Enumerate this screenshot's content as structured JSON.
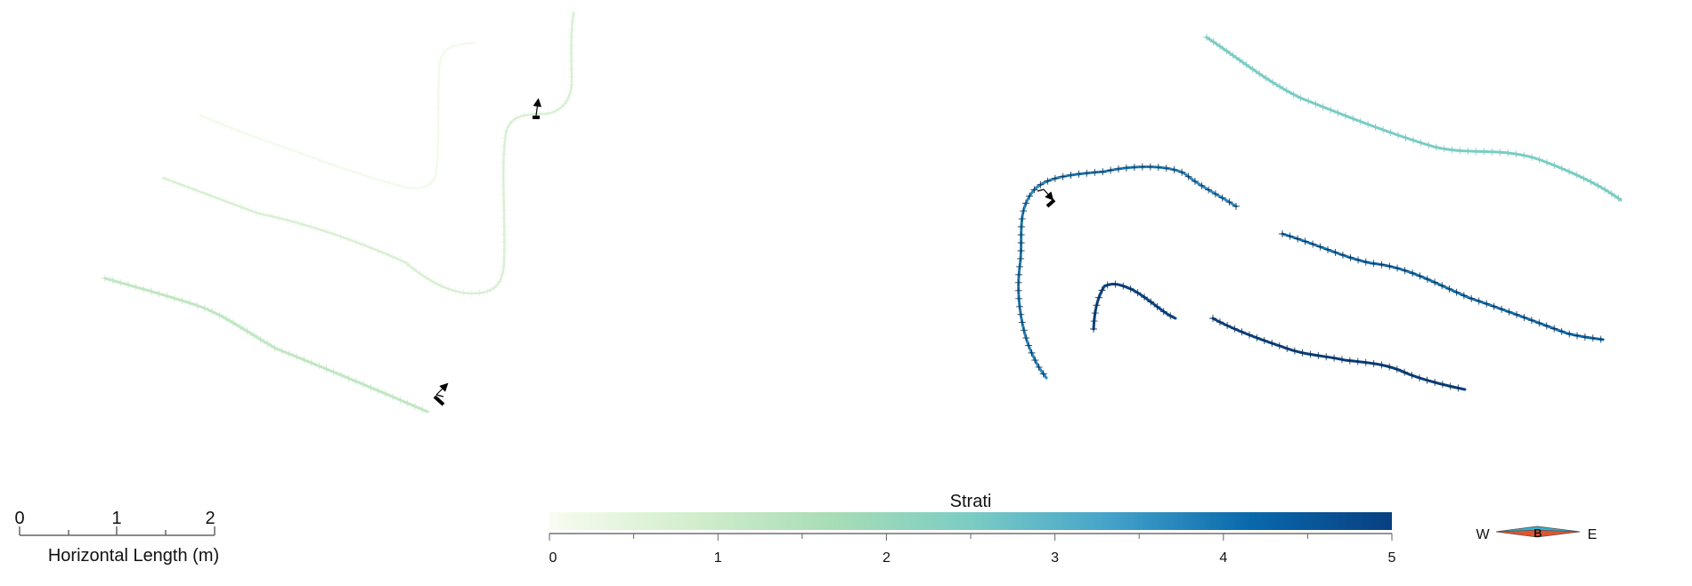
{
  "scale_bar": {
    "labels": [
      "0",
      "1",
      "2"
    ],
    "values": [
      0,
      1,
      2
    ],
    "title": "Horizontal Length (m)"
  },
  "colorbar": {
    "title": "Strati",
    "ticks": [
      "0",
      "1",
      "2",
      "3",
      "4",
      "5"
    ],
    "min": 0,
    "max": 5,
    "colors": [
      "#f7fcf0",
      "#d3eecd",
      "#a8ddb5",
      "#7bccc4",
      "#43a2ca",
      "#0868ac",
      "#084081"
    ]
  },
  "compass": {
    "west": "W",
    "east": "E",
    "center": "B"
  },
  "strata": [
    {
      "id": "left-0",
      "value": 0.1
    },
    {
      "id": "left-1",
      "value": 0.7
    },
    {
      "id": "left-2",
      "value": 1.2
    },
    {
      "id": "right-1",
      "value": 2.5
    },
    {
      "id": "right-2",
      "value": 3.7
    },
    {
      "id": "right-3",
      "value": 4.0
    },
    {
      "id": "right-4",
      "value": 4.9
    },
    {
      "id": "right-5",
      "value": 5.0
    }
  ]
}
